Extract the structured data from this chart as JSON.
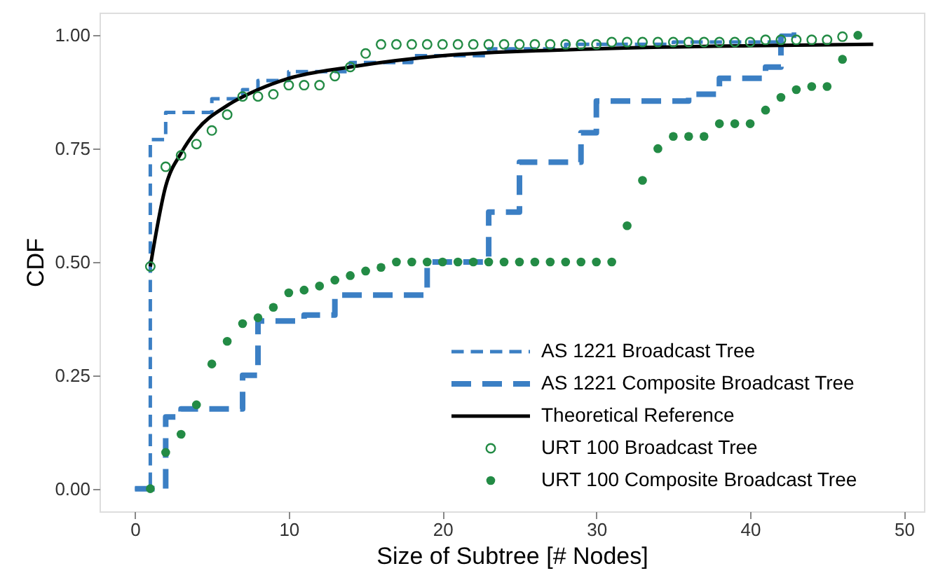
{
  "chart_data": {
    "type": "line",
    "xlabel": "Size of Subtree [# Nodes]",
    "ylabel": "CDF",
    "xlim": [
      -2.3,
      51.3
    ],
    "xticks": [
      0,
      10,
      20,
      30,
      40,
      50
    ],
    "ylim": [
      -0.05,
      1.05
    ],
    "yticks": [
      {
        "value": 0,
        "label": "0.00"
      },
      {
        "value": 0.25,
        "label": "0.25"
      },
      {
        "value": 0.5,
        "label": "0.50"
      },
      {
        "value": 0.75,
        "label": "0.75"
      },
      {
        "value": 1,
        "label": "1.00"
      }
    ],
    "grid": false,
    "legend": "bottom right",
    "series": [
      {
        "name": "AS 1221 Broadcast Tree",
        "type": "step",
        "line_style": "dashed",
        "color": "#3b7fc4",
        "x": [
          0,
          1,
          2,
          5,
          7,
          8,
          10,
          14,
          18,
          23,
          28,
          35,
          42,
          43
        ],
        "values": [
          0,
          0.77,
          0.83,
          0.86,
          0.88,
          0.9,
          0.92,
          0.94,
          0.955,
          0.97,
          0.98,
          0.985,
          1.0,
          1.0
        ]
      },
      {
        "name": "AS 1221 Composite Broadcast Tree",
        "type": "step",
        "line_style": "dashed",
        "color": "#3b7fc4",
        "x": [
          0,
          2,
          3,
          7,
          8,
          11,
          13,
          19,
          23,
          25,
          29,
          30,
          36,
          38,
          41,
          42,
          43
        ],
        "values": [
          0,
          0.158,
          0.176,
          0.25,
          0.37,
          0.383,
          0.427,
          0.5,
          0.61,
          0.72,
          0.785,
          0.855,
          0.87,
          0.905,
          0.93,
          1.0,
          1.0
        ]
      },
      {
        "name": "Theoretical Reference",
        "line_style": "solid",
        "color": "#000000",
        "x": [
          1,
          2,
          3,
          4,
          6,
          8,
          10,
          14,
          20,
          30,
          40,
          48
        ],
        "values": [
          0.49,
          0.667,
          0.74,
          0.79,
          0.845,
          0.88,
          0.905,
          0.93,
          0.955,
          0.97,
          0.977,
          0.98
        ]
      },
      {
        "name": "URT 100 Broadcast Tree",
        "type": "scatter",
        "marker": "circle",
        "color": "#238b45",
        "x": [
          1,
          2,
          3,
          4,
          5,
          6,
          7,
          8,
          9,
          10,
          11,
          12,
          13,
          14,
          15,
          16,
          17,
          18,
          19,
          20,
          21,
          22,
          23,
          24,
          25,
          26,
          27,
          28,
          29,
          30,
          31,
          32,
          33,
          34,
          35,
          36,
          37,
          38,
          39,
          40,
          41,
          42,
          43,
          44,
          45,
          46
        ],
        "values": [
          0.49,
          0.71,
          0.735,
          0.76,
          0.79,
          0.825,
          0.865,
          0.865,
          0.87,
          0.89,
          0.89,
          0.89,
          0.91,
          0.93,
          0.96,
          0.98,
          0.98,
          0.98,
          0.98,
          0.98,
          0.98,
          0.98,
          0.98,
          0.98,
          0.98,
          0.98,
          0.98,
          0.98,
          0.98,
          0.98,
          0.985,
          0.985,
          0.985,
          0.985,
          0.985,
          0.985,
          0.985,
          0.985,
          0.985,
          0.985,
          0.99,
          0.99,
          0.99,
          0.99,
          0.99,
          0.997
        ]
      },
      {
        "name": "URT 100 Composite Broadcast Tree",
        "type": "scatter",
        "marker": "circle",
        "color": "#238b45",
        "x": [
          1,
          2,
          3,
          4,
          5,
          6,
          7,
          8,
          9,
          10,
          11,
          12,
          13,
          14,
          15,
          16,
          17,
          18,
          19,
          20,
          21,
          22,
          23,
          24,
          25,
          26,
          27,
          28,
          29,
          30,
          31,
          32,
          33,
          34,
          35,
          36,
          37,
          38,
          39,
          40,
          41,
          42,
          43,
          44,
          45,
          46,
          47
        ],
        "values": [
          0,
          0.08,
          0.12,
          0.185,
          0.275,
          0.325,
          0.364,
          0.377,
          0.4,
          0.432,
          0.438,
          0.447,
          0.46,
          0.47,
          0.48,
          0.488,
          0.5,
          0.5,
          0.5,
          0.5,
          0.5,
          0.5,
          0.5,
          0.5,
          0.5,
          0.5,
          0.5,
          0.5,
          0.5,
          0.5,
          0.5,
          0.58,
          0.68,
          0.75,
          0.777,
          0.777,
          0.777,
          0.805,
          0.805,
          0.805,
          0.835,
          0.863,
          0.88,
          0.887,
          0.887,
          0.947,
          1.0
        ]
      }
    ]
  }
}
